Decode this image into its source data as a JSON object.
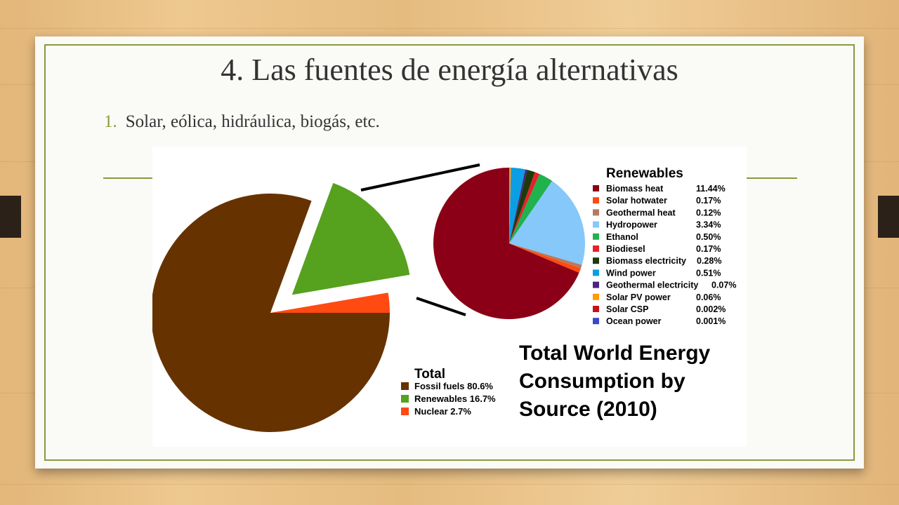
{
  "slide": {
    "title": "4. Las fuentes de energía alternativas",
    "bullet_number": "1.",
    "bullet_text": "Solar, eólica, hidráulica, biogás, etc."
  },
  "chart_data": [
    {
      "type": "pie",
      "legend_title": "Total",
      "legend_placement": "bottom-center",
      "slices": [
        {
          "label": "Fossil fuels",
          "value": 80.6,
          "color": "#663300",
          "legend_text": "Fossil fuels 80.6%"
        },
        {
          "label": "Renewables",
          "value": 16.7,
          "color": "#56a11e",
          "legend_text": "Renewables 16.7%",
          "exploded": true
        },
        {
          "label": "Nuclear",
          "value": 2.7,
          "color": "#ff4a12",
          "legend_text": "Nuclear 2.7%"
        }
      ]
    },
    {
      "type": "pie",
      "legend_title": "Renewables",
      "legend_placement": "right",
      "slices": [
        {
          "label": "Biomass heat",
          "value": 11.44,
          "display": "11.44%",
          "color": "#8b0016"
        },
        {
          "label": "Solar hotwater",
          "value": 0.17,
          "display": "0.17%",
          "color": "#ff4a12"
        },
        {
          "label": "Geothermal heat",
          "value": 0.12,
          "display": "0.12%",
          "color": "#b77a5c"
        },
        {
          "label": "Hydropower",
          "value": 3.34,
          "display": "3.34%",
          "color": "#86c8fa"
        },
        {
          "label": "Ethanol",
          "value": 0.5,
          "display": "0.50%",
          "color": "#20b24c"
        },
        {
          "label": "Biodiesel",
          "value": 0.17,
          "display": "0.17%",
          "color": "#e8202a"
        },
        {
          "label": "Biomass electricity",
          "value": 0.28,
          "display": "0.28%",
          "color": "#1e3a0c"
        },
        {
          "label": "Wind power",
          "value": 0.51,
          "display": "0.51%",
          "color": "#0b9ee4"
        },
        {
          "label": "Geothermal electricity",
          "value": 0.07,
          "display": "0.07%",
          "color": "#4b2383"
        },
        {
          "label": "Solar PV power",
          "value": 0.06,
          "display": "0.06%",
          "color": "#ff9a00"
        },
        {
          "label": "Solar CSP",
          "value": 0.002,
          "display": "0.002%",
          "color": "#c8101e"
        },
        {
          "label": "Ocean power",
          "value": 0.001,
          "display": "0.001%",
          "color": "#3c46c8"
        }
      ]
    }
  ],
  "chart_title_lines": [
    "Total World Energy",
    "Consumption by",
    "Source (2010)"
  ]
}
